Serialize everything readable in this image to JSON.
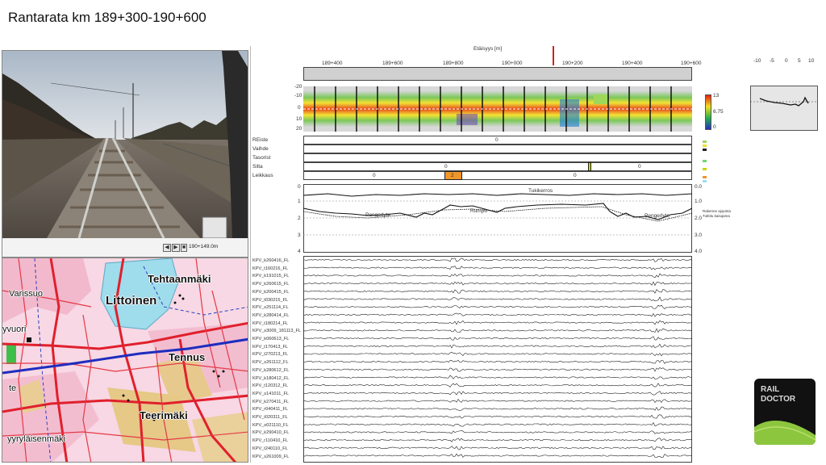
{
  "title": "Rantarata km 189+300-190+600",
  "video": {
    "controls": [
      "◀",
      "▶",
      "■",
      "◀◀",
      "▶▶"
    ],
    "position": "190+149.0m"
  },
  "map": {
    "labels": [
      "Tehtaanmäki",
      "Varissuo",
      "Littoinen",
      "yvuori",
      "Tennus",
      "te",
      "Teerimäki",
      "yyryläisenmäki"
    ]
  },
  "analysis": {
    "distance_axis_title": "Etäisyys [m]",
    "distance_ticks": [
      "189+400",
      "189+600",
      "189+800",
      "190+000",
      "190+200",
      "190+400",
      "190+600"
    ],
    "heatmap_y_ticks": [
      "-20",
      "-10",
      "0",
      "10",
      "20"
    ],
    "heatmap_colorbar_ticks": [
      "13",
      "6.75",
      "0"
    ],
    "rows": {
      "labels": [
        "REiste",
        "Vaihde",
        "Tasorist",
        "Silta",
        "Leikkaus"
      ],
      "reiste_value": "0",
      "silta_values": [
        "0",
        "0"
      ],
      "leikkaus_values": [
        "0",
        "2",
        "0"
      ]
    },
    "height_plot": {
      "y_ticks": [
        "0",
        "1",
        "2",
        "3",
        "4"
      ],
      "right_ticks": [
        "0.0",
        "1.0",
        "2.0",
        "3.0",
        "4.0"
      ],
      "annotations": [
        "Tukikerros",
        "Pengerlyte",
        "Rumpu",
        "Pengerlyte"
      ],
      "legend": [
        "Rakenne ajopinta",
        "Tutkitu kaisqama"
      ]
    },
    "traces": [
      "KPV_k260416_FL",
      "KPV_t160216_FL",
      "KPV_k191015_FL",
      "KPV_k260615_FL",
      "KPV_k200415_FL",
      "KPV_t030215_FL",
      "KPV_s251114_FL",
      "KPV_k280414_FL",
      "KPV_t180214_FL",
      "KPV_s3009_181113_FL",
      "KPV_k060613_FL",
      "KPV_t170413_FL",
      "KPV_t270213_FL",
      "KPV_s261112_FL",
      "KPV_k280612_FL",
      "KPV_k180412_FL",
      "KPV_t120312_FL",
      "KPV_s141011_FL",
      "KPV_k270411_FL",
      "KPV_r040411_FL",
      "KPV_t020311_FL",
      "KPV_s021110_FL",
      "KPV_k290410_FL",
      "KPV_r110410_FL",
      "KPV_t240110_FL",
      "KPV_s261009_FL"
    ]
  },
  "profile": {
    "x_ticks": [
      "-10",
      "-5",
      "0",
      "5",
      "10"
    ]
  },
  "logo": {
    "line1": "RAIL",
    "line2": "DOCTOR"
  },
  "colors": {
    "heatmap_high": "#e02010",
    "heatmap_mid": "#f0e020",
    "heatmap_low": "#2030c0",
    "orange_marker": "#f0962a",
    "logo_green": "#8cc63f"
  }
}
